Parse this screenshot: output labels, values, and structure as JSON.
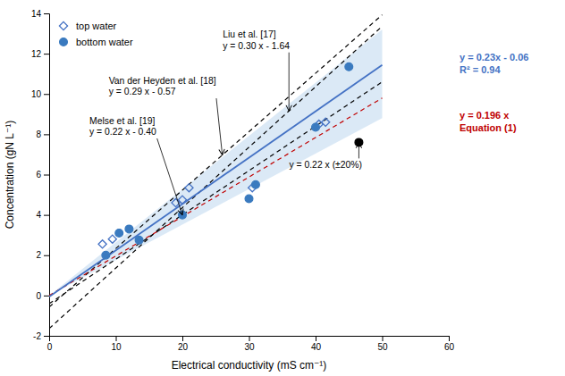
{
  "chart_data": {
    "type": "scatter",
    "xlabel": "Electrical conductivity (mS cm⁻¹)",
    "ylabel": "Concentration (gN L⁻¹)",
    "xlim": [
      0,
      60
    ],
    "ylim": [
      -2,
      14
    ],
    "xticks": [
      0,
      10,
      20,
      30,
      40,
      50,
      60
    ],
    "yticks": [
      -2,
      0,
      2,
      4,
      6,
      8,
      10,
      12,
      14
    ],
    "grid": false,
    "legend": "upper left",
    "series": [
      {
        "type": "area",
        "color": "#bdd7ee",
        "x": [
          0,
          50
        ],
        "values": [
          0,
          13.2
        ],
        "lower": [
          0,
          8.8
        ]
      },
      {
        "type": "line",
        "color": "black",
        "line_style": "dashed",
        "x": [
          0,
          50
        ],
        "values": [
          -1.64,
          13.36
        ]
      },
      {
        "type": "line",
        "color": "black",
        "line_style": "dashed",
        "x": [
          0,
          50
        ],
        "values": [
          -0.57,
          13.93
        ]
      },
      {
        "type": "line",
        "color": "black",
        "line_style": "dashed",
        "x": [
          0,
          50
        ],
        "values": [
          -0.4,
          10.6
        ]
      },
      {
        "type": "line",
        "color": "#c00000",
        "line_style": "dashed",
        "x": [
          0,
          50
        ],
        "values": [
          0,
          9.8
        ]
      },
      {
        "type": "line",
        "color": "#4472c4",
        "line_style": "solid",
        "x": [
          0,
          50
        ],
        "values": [
          -0.06,
          11.44
        ]
      },
      {
        "type": "scatter",
        "name": "top water",
        "color": "#4472c4",
        "marker": "open-diamond",
        "x": [
          8.0,
          9.5,
          19.0,
          20.0,
          21.0,
          30.5,
          40.5,
          41.5
        ],
        "values": [
          2.55,
          2.8,
          4.6,
          4.75,
          5.35,
          5.35,
          8.5,
          8.6
        ]
      },
      {
        "type": "scatter",
        "name": "bottom water",
        "color": "#3a7abf",
        "marker": "circle",
        "x": [
          8.5,
          10.5,
          12.0,
          13.5,
          20.0,
          30.0,
          31.0,
          40.0,
          45.0
        ],
        "values": [
          2.0,
          3.1,
          3.3,
          2.75,
          4.0,
          4.8,
          5.5,
          8.35,
          11.35
        ]
      },
      {
        "type": "scatter",
        "color": "black",
        "marker": "circle",
        "x": [
          46.5
        ],
        "values": [
          7.6
        ]
      }
    ],
    "annotations": [
      {
        "text": "Liu et al. [17]\ny = 0.30 x - 1.64",
        "x": 36,
        "y": 9.16
      },
      {
        "text": "Van der Heyden et al. [18]\ny = 0.29 x - 0.57",
        "x": 26,
        "y": 6.97
      },
      {
        "text": "Melse et al. [19]\ny = 0.22 x - 0.40",
        "x": 20,
        "y": 4.0
      },
      {
        "text": "y = 0.22 x (±20%)",
        "x": 46.5,
        "y": 7.6
      },
      {
        "text": "y = 0.23x - 0.06\nR² = 0.94",
        "color": "#4472c4"
      },
      {
        "text": "y = 0.196 x\nEquation (1)",
        "color": "#c00000"
      }
    ]
  }
}
